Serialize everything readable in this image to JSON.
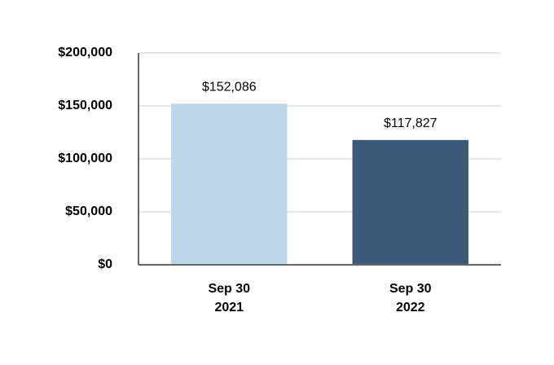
{
  "chart_data": {
    "type": "bar",
    "categories": [
      "Sep 30\n2021",
      "Sep 30\n2022"
    ],
    "values": [
      152086,
      117827
    ],
    "value_labels": [
      "$152,086",
      "$117,827"
    ],
    "colors": [
      "#bcd7ea",
      "#3b5a78"
    ],
    "ylim": [
      0,
      200000
    ],
    "yticks": [
      {
        "value": 0,
        "label": "$0"
      },
      {
        "value": 50000,
        "label": "$50,000"
      },
      {
        "value": 100000,
        "label": "$100,000"
      },
      {
        "value": 150000,
        "label": "$150,000"
      },
      {
        "value": 200000,
        "label": "$200,000"
      }
    ],
    "grid": true
  }
}
